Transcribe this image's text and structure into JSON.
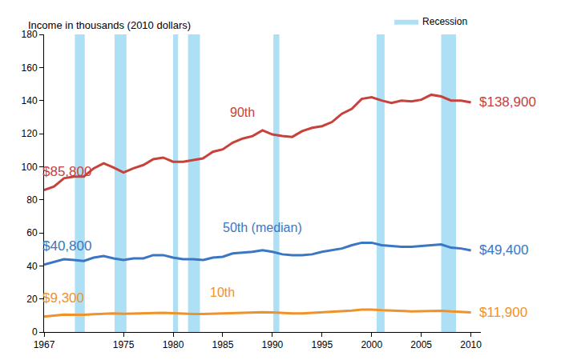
{
  "chart_data": {
    "type": "line",
    "ylabel": "Income in thousands (2010 dollars)",
    "x": [
      1967,
      1968,
      1969,
      1970,
      1971,
      1972,
      1973,
      1974,
      1975,
      1976,
      1977,
      1978,
      1979,
      1980,
      1981,
      1982,
      1983,
      1984,
      1985,
      1986,
      1987,
      1988,
      1989,
      1990,
      1991,
      1992,
      1993,
      1994,
      1995,
      1996,
      1997,
      1998,
      1999,
      2000,
      2001,
      2002,
      2003,
      2004,
      2005,
      2006,
      2007,
      2008,
      2009,
      2010
    ],
    "series": [
      {
        "name": "90th",
        "color": "#c8413a",
        "values": [
          85.8,
          88,
          93,
          94,
          94,
          99,
          102,
          99.5,
          96.5,
          99,
          101,
          104.5,
          105.5,
          103,
          103,
          104,
          105,
          109,
          110.5,
          114.5,
          117,
          118.5,
          122,
          119.5,
          118.5,
          118,
          121.5,
          123.5,
          124.5,
          127,
          132,
          135,
          141,
          142,
          140,
          138.5,
          140,
          139.5,
          140.5,
          143.5,
          142.5,
          140,
          140,
          138.9
        ],
        "value_labels": [
          "$85,800",
          null,
          null,
          null,
          null,
          null,
          null,
          null,
          null,
          null,
          null,
          null,
          null,
          null,
          null,
          null,
          null,
          null,
          null,
          null,
          null,
          null,
          null,
          null,
          null,
          null,
          null,
          null,
          null,
          null,
          null,
          null,
          null,
          null,
          null,
          null,
          null,
          null,
          null,
          null,
          null,
          null,
          null,
          "$138,900"
        ]
      },
      {
        "name": "50th (median)",
        "color": "#3a76c4",
        "values": [
          40.8,
          42.5,
          44,
          43.5,
          43,
          45,
          46,
          44.5,
          43.5,
          44.5,
          44.5,
          46.5,
          46.5,
          45,
          44,
          44,
          43.5,
          45,
          45.5,
          47.5,
          48,
          48.5,
          49.5,
          48.5,
          47,
          46.5,
          46.5,
          47,
          48.5,
          49.5,
          50.5,
          52.5,
          54,
          54,
          52.5,
          52,
          51.5,
          51.5,
          52,
          52.5,
          53,
          51,
          50.5,
          49.4
        ],
        "value_labels": [
          "$40,800",
          null,
          null,
          null,
          null,
          null,
          null,
          null,
          null,
          null,
          null,
          null,
          null,
          null,
          null,
          null,
          null,
          null,
          null,
          null,
          null,
          null,
          null,
          null,
          null,
          null,
          null,
          null,
          null,
          null,
          null,
          null,
          null,
          null,
          null,
          null,
          null,
          null,
          null,
          null,
          null,
          null,
          null,
          "$49,400"
        ]
      },
      {
        "name": "10th",
        "color": "#f0922b",
        "values": [
          9.3,
          10,
          10.5,
          10.4,
          10.4,
          10.8,
          11.2,
          11.3,
          11,
          11.2,
          11.2,
          11.5,
          11.6,
          11.4,
          11,
          10.9,
          10.9,
          11.1,
          11.3,
          11.5,
          11.5,
          11.7,
          12,
          11.8,
          11.5,
          11.3,
          11.3,
          11.6,
          12.1,
          12.2,
          12.5,
          12.9,
          13.5,
          13.6,
          13.2,
          12.9,
          12.6,
          12.5,
          12.6,
          12.8,
          12.8,
          12.4,
          12.2,
          11.9
        ],
        "value_labels": [
          "$9,300",
          null,
          null,
          null,
          null,
          null,
          null,
          null,
          null,
          null,
          null,
          null,
          null,
          null,
          null,
          null,
          null,
          null,
          null,
          null,
          null,
          null,
          null,
          null,
          null,
          null,
          null,
          null,
          null,
          null,
          null,
          null,
          null,
          null,
          null,
          null,
          null,
          null,
          null,
          null,
          null,
          null,
          null,
          "$11,900"
        ]
      }
    ],
    "recessions": {
      "name": "Recession",
      "color": "#aee0f5",
      "periods": [
        [
          1970.1,
          1971.1
        ],
        [
          1974.1,
          1975.3
        ],
        [
          1980,
          1980.5
        ],
        [
          1981.5,
          1982.7
        ],
        [
          1990.1,
          1990.7
        ],
        [
          2000.5,
          2001.3
        ],
        [
          2007,
          2008.5
        ]
      ]
    },
    "xlim": [
      1967,
      2011
    ],
    "xticks": [
      1967,
      1975,
      1980,
      1985,
      1990,
      1995,
      2000,
      2005,
      2010
    ],
    "ylim": [
      0,
      180
    ],
    "yticks": [
      0,
      20,
      40,
      60,
      80,
      100,
      120,
      140,
      160,
      180
    ],
    "grid": false,
    "legend": "top right",
    "data_labels": true
  }
}
